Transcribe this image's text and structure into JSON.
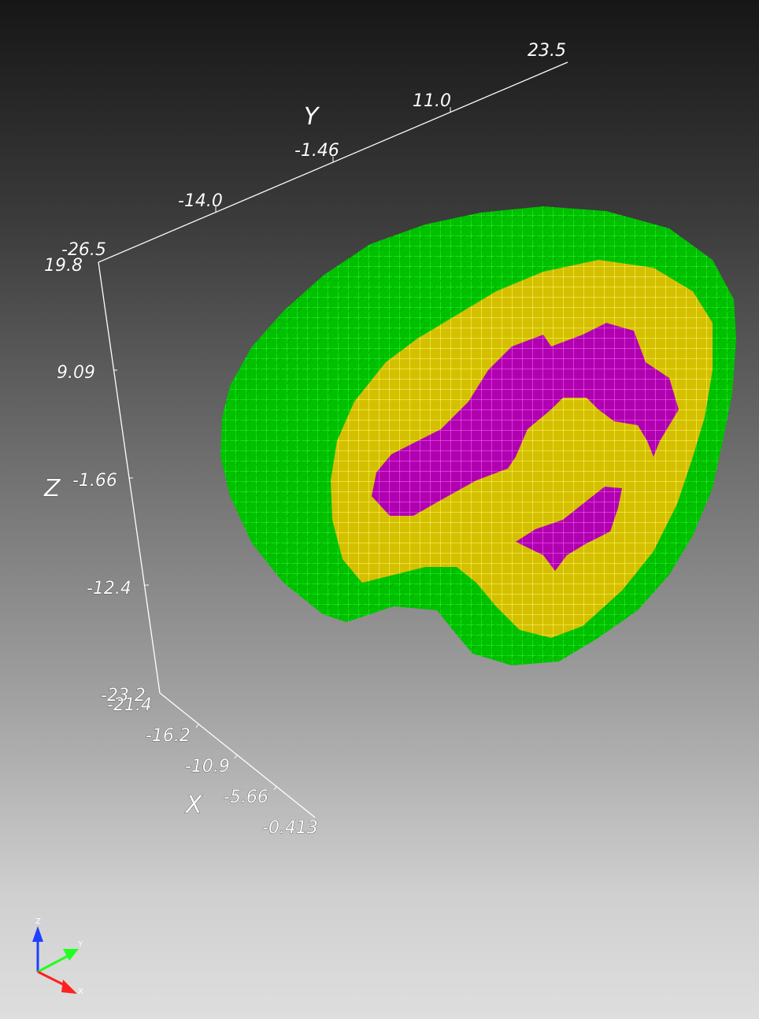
{
  "viewer": {
    "background_top": "#161616",
    "background_bottom": "#dedede",
    "axis_color": "#ffffff"
  },
  "cube_axes": {
    "x": {
      "title": "X",
      "ticks": [
        "-21.4",
        "-16.2",
        "-10.9",
        "-5.66",
        "-0.413"
      ]
    },
    "y": {
      "title": "Y",
      "ticks": [
        "-26.5",
        "-14.0",
        "-1.46",
        "11.0",
        "23.5"
      ]
    },
    "z": {
      "title": "Z",
      "ticks": [
        "19.8",
        "9.09",
        "-1.66",
        "-12.4",
        "-23.2"
      ]
    }
  },
  "voxel_model": {
    "description_colors": {
      "outer": "#00c000",
      "middle": "#d4c000",
      "inner": "#b000b0",
      "outer_edge": "#33ff33",
      "middle_edge": "#ffff66",
      "inner_edge": "#ff66ff"
    }
  },
  "orientation_triad": {
    "x_label": "X",
    "y_label": "Y",
    "z_label": "Z",
    "x_color": "#ff2020",
    "y_color": "#20ff20",
    "z_color": "#2040ff"
  }
}
